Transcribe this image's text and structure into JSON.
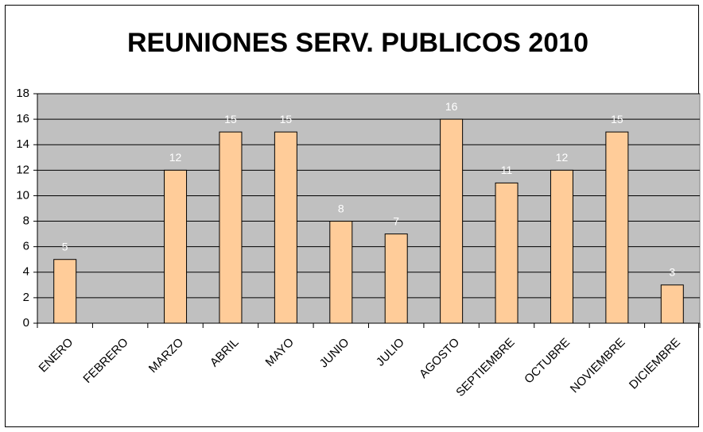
{
  "chart_data": {
    "type": "bar",
    "title": "REUNIONES SERV. PUBLICOS 2010",
    "categories": [
      "ENERO",
      "FEBRERO",
      "MARZO",
      "ABRIL",
      "MAYO",
      "JUNIO",
      "JULIO",
      "AGOSTO",
      "SEPTIEMBRE",
      "OCTUBRE",
      "NOVIEMBRE",
      "DICIEMBRE"
    ],
    "values": [
      5,
      null,
      12,
      15,
      15,
      8,
      7,
      16,
      11,
      12,
      15,
      3
    ],
    "color": "#ffcc99",
    "plot_background": "#c0c0c0",
    "ylim": [
      0,
      18
    ],
    "yticks": [
      0,
      2,
      4,
      6,
      8,
      10,
      12,
      14,
      16,
      18
    ],
    "grid": true
  }
}
